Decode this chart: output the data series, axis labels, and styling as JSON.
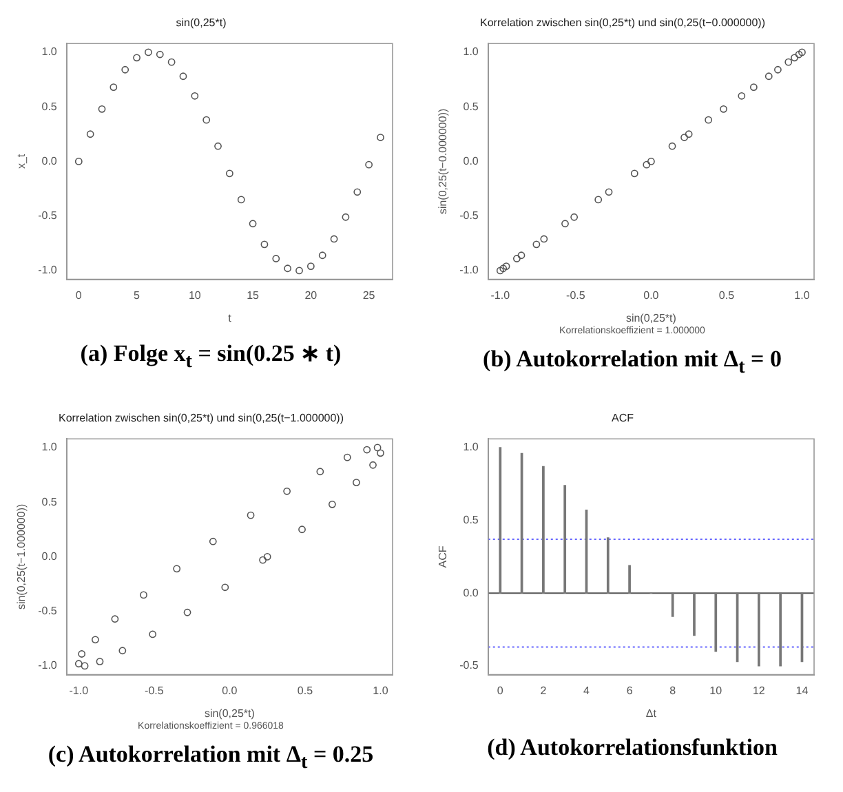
{
  "chart_data": [
    {
      "type": "scatter",
      "title": "sin(0,25*t)",
      "xlabel": "t",
      "ylabel": "x_t",
      "marker": "circle",
      "xlim": [
        -1.04,
        27.04
      ],
      "ylim": [
        -1.08,
        1.08
      ],
      "xticks": [
        0,
        5,
        10,
        15,
        20,
        25
      ],
      "yticks": [
        {
          "value": -1,
          "label": "-1.0"
        },
        {
          "value": -0.5,
          "label": "-0.5"
        },
        {
          "value": 0,
          "label": "0.0"
        },
        {
          "value": 0.5,
          "label": "0.5"
        },
        {
          "value": 1,
          "label": "1.0"
        }
      ],
      "annotations": [
        "(a) Folge x$_{t}$ = sin(0.25 ∗ t)"
      ],
      "series": [
        {
          "color": "#555555",
          "x": [
            0,
            1,
            2,
            3,
            4,
            5,
            6,
            7,
            8,
            9,
            10,
            11,
            12,
            13,
            14,
            15,
            16,
            17,
            18,
            19,
            20,
            21,
            22,
            23,
            24,
            25,
            26
          ],
          "values": [
            0,
            0.25,
            0.48,
            0.68,
            0.84,
            0.95,
            1.0,
            0.98,
            0.91,
            0.78,
            0.6,
            0.38,
            0.14,
            -0.11,
            -0.35,
            -0.57,
            -0.76,
            -0.89,
            -0.98,
            -1.0,
            -0.96,
            -0.86,
            -0.71,
            -0.51,
            -0.28,
            -0.03,
            0.22
          ]
        }
      ]
    },
    {
      "type": "scatter",
      "title": "Korrelation zwischen sin(0,25*t) und sin(0,25(t−0.000000))",
      "xlabel": "sin(0,25*t)",
      "ylabel": "sin(0,25(t−0.000000))",
      "marker": "circle",
      "xlim": [
        -1.08,
        1.08
      ],
      "ylim": [
        -1.08,
        1.08
      ],
      "xticks": [
        {
          "value": -1,
          "label": "-1.0"
        },
        {
          "value": -0.5,
          "label": "-0.5"
        },
        {
          "value": 0,
          "label": "0.0"
        },
        {
          "value": 0.5,
          "label": "0.5"
        },
        {
          "value": 1,
          "label": "1.0"
        }
      ],
      "yticks": [
        {
          "value": -1,
          "label": "-1.0"
        },
        {
          "value": -0.5,
          "label": "-0.5"
        },
        {
          "value": 0,
          "label": "0.0"
        },
        {
          "value": 0.5,
          "label": "0.5"
        },
        {
          "value": 1,
          "label": "1.0"
        }
      ],
      "annotations": [
        "Korrelationskoeffizient = 1.000000",
        "(b) Autokorrelation mit Δ$_{t}$ = 0"
      ],
      "series": [
        {
          "color": "#555555",
          "x": [
            0,
            0.25,
            0.48,
            0.68,
            0.84,
            0.95,
            1.0,
            0.98,
            0.91,
            0.78,
            0.6,
            0.38,
            0.14,
            -0.11,
            -0.35,
            -0.57,
            -0.76,
            -0.89,
            -0.98,
            -1.0,
            -0.96,
            -0.86,
            -0.71,
            -0.51,
            -0.28,
            -0.03,
            0.22
          ],
          "values": [
            0,
            0.25,
            0.48,
            0.68,
            0.84,
            0.95,
            1.0,
            0.98,
            0.91,
            0.78,
            0.6,
            0.38,
            0.14,
            -0.11,
            -0.35,
            -0.57,
            -0.76,
            -0.89,
            -0.98,
            -1.0,
            -0.96,
            -0.86,
            -0.71,
            -0.51,
            -0.28,
            -0.03,
            0.22
          ]
        }
      ]
    },
    {
      "type": "scatter",
      "title": "Korrelation zwischen sin(0,25*t) und sin(0,25(t−1.000000))",
      "xlabel": "sin(0,25*t)",
      "ylabel": "sin(0,25(t−1.000000))",
      "marker": "circle",
      "xlim": [
        -1.08,
        1.08
      ],
      "ylim": [
        -1.08,
        1.08
      ],
      "xticks": [
        {
          "value": -1,
          "label": "-1.0"
        },
        {
          "value": -0.5,
          "label": "-0.5"
        },
        {
          "value": 0,
          "label": "0.0"
        },
        {
          "value": 0.5,
          "label": "0.5"
        },
        {
          "value": 1,
          "label": "1.0"
        }
      ],
      "yticks": [
        {
          "value": -1,
          "label": "-1.0"
        },
        {
          "value": -0.5,
          "label": "-0.5"
        },
        {
          "value": 0,
          "label": "0.0"
        },
        {
          "value": 0.5,
          "label": "0.5"
        },
        {
          "value": 1,
          "label": "1.0"
        }
      ],
      "annotations": [
        "Korrelationskoeffizient = 0.966018",
        "(c) Autokorrelation mit Δ$_{t}$ = 0.25"
      ],
      "series": [
        {
          "color": "#555555",
          "x": [
            0.25,
            0.48,
            0.68,
            0.84,
            0.95,
            1.0,
            0.98,
            0.91,
            0.78,
            0.6,
            0.38,
            0.14,
            -0.11,
            -0.35,
            -0.57,
            -0.76,
            -0.89,
            -0.98,
            -1.0,
            -0.96,
            -0.86,
            -0.71,
            -0.51,
            -0.28,
            -0.03,
            0.22
          ],
          "values": [
            0,
            0.25,
            0.48,
            0.68,
            0.84,
            0.95,
            1.0,
            0.98,
            0.91,
            0.78,
            0.6,
            0.38,
            0.14,
            -0.11,
            -0.35,
            -0.57,
            -0.76,
            -0.89,
            -0.98,
            -1.0,
            -0.96,
            -0.86,
            -0.71,
            -0.51,
            -0.28,
            -0.03
          ]
        }
      ]
    },
    {
      "type": "bar",
      "title": "ACF",
      "xlabel": "Δt",
      "ylabel": "ACF",
      "xlim": [
        -0.56,
        14.56
      ],
      "ylim": [
        -0.56,
        1.06
      ],
      "xticks": [
        0,
        2,
        4,
        6,
        8,
        10,
        12,
        14
      ],
      "yticks": [
        {
          "value": -0.5,
          "label": "-0.5"
        },
        {
          "value": 0,
          "label": "0.0"
        },
        {
          "value": 0.5,
          "label": "0.5"
        },
        {
          "value": 1,
          "label": "1.0"
        }
      ],
      "annotations": [
        "(d) Autokorrelationsfunktion"
      ],
      "ref_lines": [
        {
          "axis": "y",
          "value": 0,
          "color": "#555555",
          "line_style": "solid"
        },
        {
          "axis": "y",
          "value": 0.37,
          "color": "#6666ff",
          "line_style": "dotted"
        },
        {
          "axis": "y",
          "value": -0.37,
          "color": "#6666ff",
          "line_style": "dotted"
        }
      ],
      "series": [
        {
          "color": "#777777",
          "x": [
            0,
            1,
            2,
            3,
            4,
            5,
            6,
            7,
            8,
            9,
            10,
            11,
            12,
            13,
            14
          ],
          "values": [
            1.0,
            0.96,
            0.87,
            0.74,
            0.57,
            0.38,
            0.19,
            0.0,
            -0.16,
            -0.29,
            -0.4,
            -0.47,
            -0.5,
            -0.5,
            -0.47
          ]
        }
      ]
    }
  ]
}
